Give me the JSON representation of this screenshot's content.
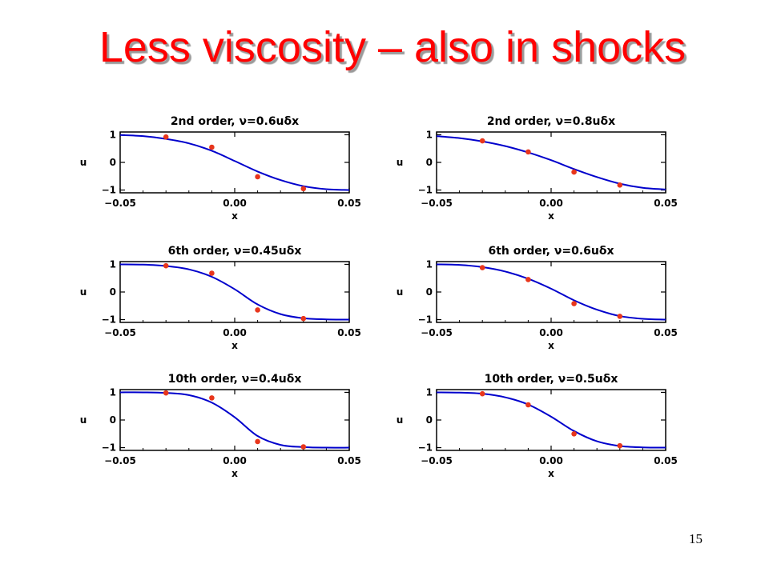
{
  "slide": {
    "title": "Less viscosity – also in shocks",
    "page_number": "15"
  },
  "colors": {
    "title": "#ff0000",
    "curve": "#0000cc",
    "points": "#e8361c",
    "axes": "#000000"
  },
  "chart_data": [
    {
      "type": "line",
      "title": "2nd order, ν=0.6uδx",
      "xlabel": "x",
      "ylabel": "u",
      "xlim": [
        -0.05,
        0.05
      ],
      "ylim": [
        -1.1,
        1.1
      ],
      "xticks": [
        "−0.05",
        "0.00",
        "0.05"
      ],
      "yticks": [
        "1",
        "0",
        "−1"
      ],
      "grid": false,
      "series": [
        {
          "kind": "line",
          "x": [
            -0.05,
            -0.04,
            -0.03,
            -0.02,
            -0.01,
            0,
            0.01,
            0.02,
            0.03,
            0.04,
            0.05
          ],
          "y": [
            0.99,
            0.95,
            0.85,
            0.69,
            0.42,
            0.05,
            -0.33,
            -0.64,
            -0.86,
            -0.97,
            -1.0
          ]
        },
        {
          "kind": "scatter",
          "x": [
            -0.03,
            -0.01,
            0.01,
            0.03
          ],
          "y": [
            0.92,
            0.55,
            -0.52,
            -0.95
          ]
        }
      ]
    },
    {
      "type": "line",
      "title": "2nd order, ν=0.8uδx",
      "xlabel": "x",
      "ylabel": "u",
      "xlim": [
        -0.05,
        0.05
      ],
      "ylim": [
        -1.1,
        1.1
      ],
      "xticks": [
        "−0.05",
        "0.00",
        "0.05"
      ],
      "yticks": [
        "1",
        "0",
        "−1"
      ],
      "grid": false,
      "series": [
        {
          "kind": "line",
          "x": [
            -0.05,
            -0.04,
            -0.03,
            -0.02,
            -0.01,
            0,
            0.01,
            0.02,
            0.03,
            0.04,
            0.05
          ],
          "y": [
            0.95,
            0.88,
            0.76,
            0.59,
            0.36,
            0.08,
            -0.24,
            -0.53,
            -0.77,
            -0.92,
            -0.98
          ]
        },
        {
          "kind": "scatter",
          "x": [
            -0.03,
            -0.01,
            0.01,
            0.03
          ],
          "y": [
            0.78,
            0.38,
            -0.35,
            -0.82
          ]
        }
      ]
    },
    {
      "type": "line",
      "title": "6th order, ν=0.45uδx",
      "xlabel": "x",
      "ylabel": "u",
      "xlim": [
        -0.05,
        0.05
      ],
      "ylim": [
        -1.1,
        1.1
      ],
      "xticks": [
        "−0.05",
        "0.00",
        "0.05"
      ],
      "yticks": [
        "1",
        "0",
        "−1"
      ],
      "grid": false,
      "series": [
        {
          "kind": "line",
          "x": [
            -0.05,
            -0.04,
            -0.03,
            -0.02,
            -0.01,
            0,
            0.01,
            0.02,
            0.03,
            0.04,
            0.05
          ],
          "y": [
            1.0,
            0.99,
            0.94,
            0.82,
            0.55,
            0.1,
            -0.45,
            -0.8,
            -0.95,
            -0.99,
            -1.0
          ]
        },
        {
          "kind": "scatter",
          "x": [
            -0.03,
            -0.01,
            0.01,
            0.03
          ],
          "y": [
            0.95,
            0.68,
            -0.65,
            -0.96
          ]
        }
      ]
    },
    {
      "type": "line",
      "title": "6th order, ν=0.6uδx",
      "xlabel": "x",
      "ylabel": "u",
      "xlim": [
        -0.05,
        0.05
      ],
      "ylim": [
        -1.1,
        1.1
      ],
      "xticks": [
        "−0.05",
        "0.00",
        "0.05"
      ],
      "yticks": [
        "1",
        "0",
        "−1"
      ],
      "grid": false,
      "series": [
        {
          "kind": "line",
          "x": [
            -0.05,
            -0.04,
            -0.03,
            -0.02,
            -0.01,
            0,
            0.01,
            0.02,
            0.03,
            0.04,
            0.05
          ],
          "y": [
            1.0,
            0.98,
            0.9,
            0.74,
            0.48,
            0.12,
            -0.3,
            -0.64,
            -0.87,
            -0.97,
            -1.0
          ]
        },
        {
          "kind": "scatter",
          "x": [
            -0.03,
            -0.01,
            0.01,
            0.03
          ],
          "y": [
            0.88,
            0.45,
            -0.42,
            -0.88
          ]
        }
      ]
    },
    {
      "type": "line",
      "title": "10th order, ν=0.4uδx",
      "xlabel": "x",
      "ylabel": "u",
      "xlim": [
        -0.05,
        0.05
      ],
      "ylim": [
        -1.1,
        1.1
      ],
      "xticks": [
        "−0.05",
        "0.00",
        "0.05"
      ],
      "yticks": [
        "1",
        "0",
        "−1"
      ],
      "grid": false,
      "series": [
        {
          "kind": "line",
          "x": [
            -0.05,
            -0.04,
            -0.03,
            -0.02,
            -0.01,
            0,
            0.01,
            0.02,
            0.03,
            0.04,
            0.05
          ],
          "y": [
            1.0,
            1.0,
            0.98,
            0.9,
            0.63,
            0.1,
            -0.58,
            -0.9,
            -0.98,
            -1.0,
            -1.0
          ]
        },
        {
          "kind": "scatter",
          "x": [
            -0.03,
            -0.01,
            0.01,
            0.03
          ],
          "y": [
            0.98,
            0.8,
            -0.78,
            -0.97
          ]
        }
      ]
    },
    {
      "type": "line",
      "title": "10th order, ν=0.5uδx",
      "xlabel": "x",
      "ylabel": "u",
      "xlim": [
        -0.05,
        0.05
      ],
      "ylim": [
        -1.1,
        1.1
      ],
      "xticks": [
        "−0.05",
        "0.00",
        "0.05"
      ],
      "yticks": [
        "1",
        "0",
        "−1"
      ],
      "grid": false,
      "series": [
        {
          "kind": "line",
          "x": [
            -0.05,
            -0.04,
            -0.03,
            -0.02,
            -0.01,
            0,
            0.01,
            0.02,
            0.03,
            0.04,
            0.05
          ],
          "y": [
            1.0,
            0.99,
            0.95,
            0.82,
            0.56,
            0.12,
            -0.4,
            -0.77,
            -0.94,
            -0.99,
            -1.0
          ]
        },
        {
          "kind": "scatter",
          "x": [
            -0.03,
            -0.01,
            0.01,
            0.03
          ],
          "y": [
            0.95,
            0.55,
            -0.5,
            -0.93
          ]
        }
      ]
    }
  ]
}
